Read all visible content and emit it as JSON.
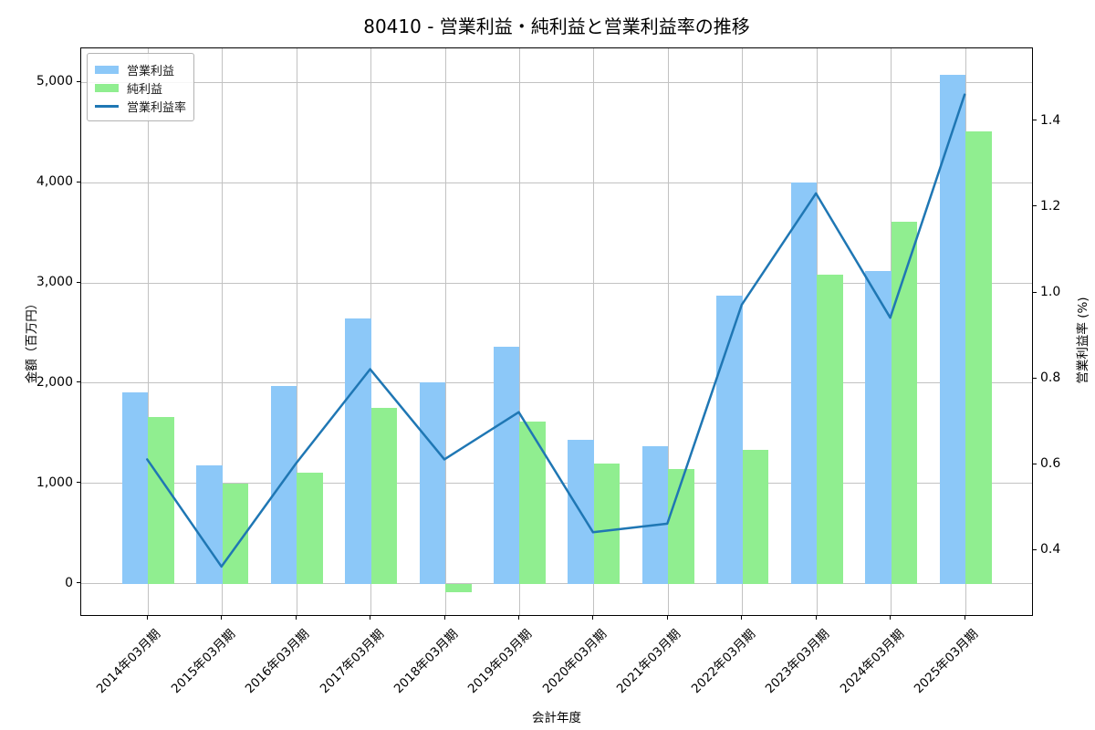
{
  "chart_data": {
    "type": "combo",
    "title": "80410 - 営業利益・純利益と営業利益率の推移",
    "xlabel": "会計年度",
    "ylabel_left": "金額（百万円）",
    "ylabel_right": "営業利益率 (%)",
    "categories": [
      "2014年03月期",
      "2015年03月期",
      "2016年03月期",
      "2017年03月期",
      "2018年03月期",
      "2019年03月期",
      "2020年03月期",
      "2021年03月期",
      "2022年03月期",
      "2023年03月期",
      "2024年03月期",
      "2025年03月期"
    ],
    "series": [
      {
        "name": "営業利益",
        "type": "bar",
        "axis": "left",
        "color": "#8CC8F8",
        "values": [
          1910,
          1180,
          1970,
          2650,
          2010,
          2360,
          1440,
          1370,
          2870,
          4000,
          3120,
          5080
        ]
      },
      {
        "name": "純利益",
        "type": "bar",
        "axis": "left",
        "color": "#90EE90",
        "values": [
          1660,
          1000,
          1110,
          1750,
          -85,
          1620,
          1200,
          1140,
          1340,
          3080,
          3610,
          4510
        ]
      },
      {
        "name": "営業利益率",
        "type": "line",
        "axis": "right",
        "color": "#1F77B4",
        "values": [
          0.61,
          0.36,
          0.6,
          0.82,
          0.61,
          0.72,
          0.44,
          0.46,
          0.97,
          1.23,
          0.94,
          1.46
        ]
      }
    ],
    "left_axis": {
      "min": -330,
      "max": 5340,
      "ticks": [
        0,
        1000,
        2000,
        3000,
        4000,
        5000
      ],
      "tick_labels": [
        "0",
        "1,000",
        "2,000",
        "3,000",
        "4,000",
        "5,000"
      ]
    },
    "right_axis": {
      "min": 0.245,
      "max": 1.57,
      "ticks": [
        0.4,
        0.6,
        0.8,
        1.0,
        1.2,
        1.4
      ],
      "tick_labels": [
        "0.4",
        "0.6",
        "0.8",
        "1.0",
        "1.2",
        "1.4"
      ]
    },
    "x_axis": {
      "min": -0.9,
      "max": 11.92,
      "bar_width": 0.35
    },
    "grid": true,
    "legend_position": "upper left"
  }
}
